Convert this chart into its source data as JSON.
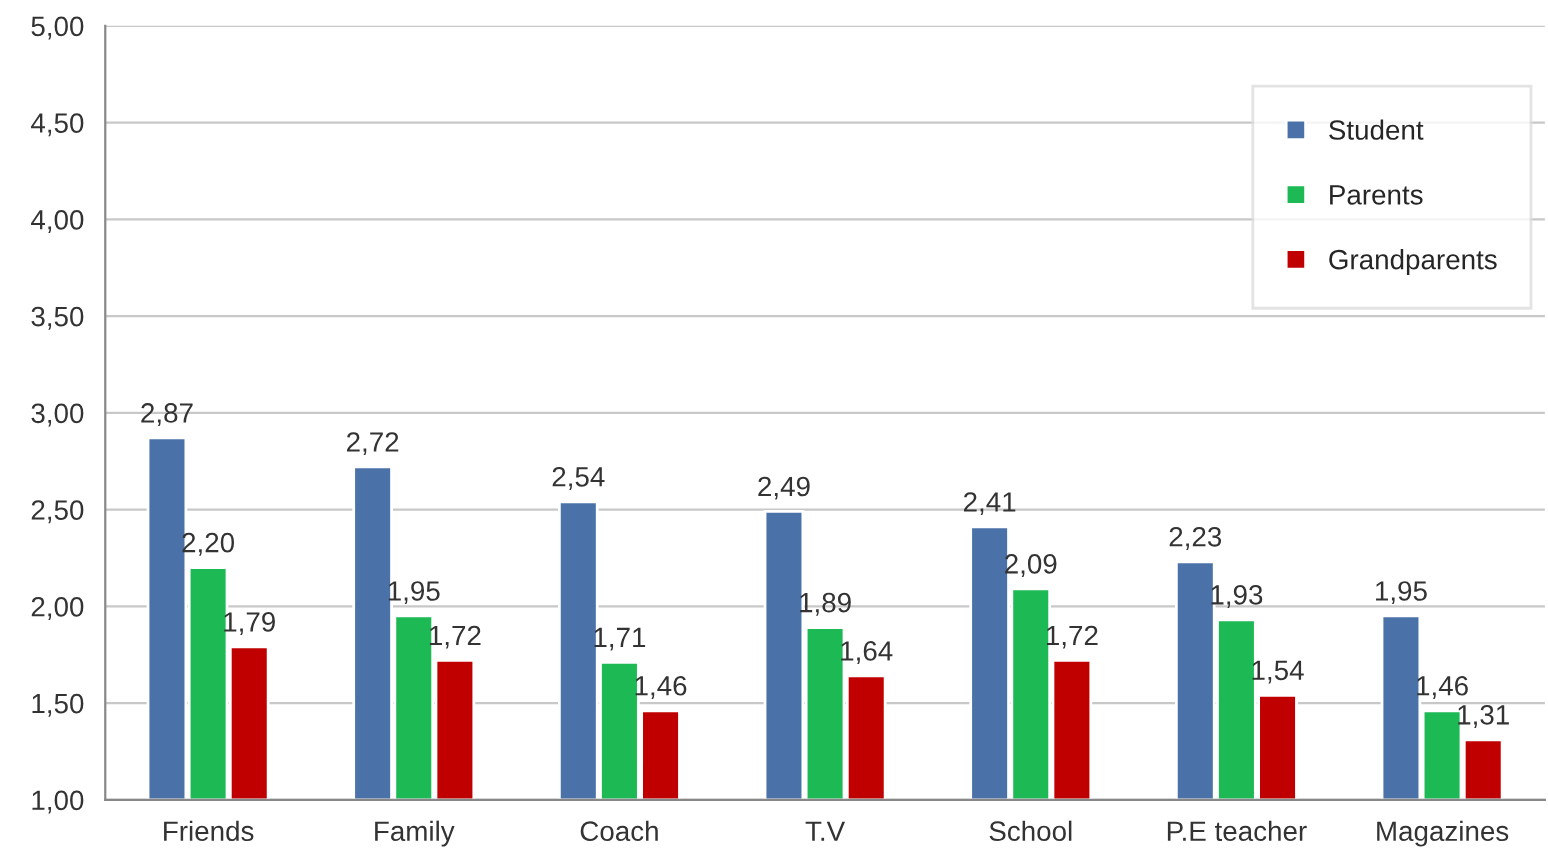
{
  "chart_data": {
    "type": "bar",
    "categories": [
      "Friends",
      "Family",
      "Coach",
      "T.V",
      "School",
      "P.E teacher",
      "Magazines"
    ],
    "series": [
      {
        "name": "Student",
        "color": "#4a72a8",
        "values": [
          2.87,
          2.72,
          2.54,
          2.49,
          2.41,
          2.23,
          1.95
        ],
        "value_labels": [
          "2,87",
          "2,72",
          "2,54",
          "2,49",
          "2,41",
          "2,23",
          "1,95"
        ]
      },
      {
        "name": "Parents",
        "color": "#1db954",
        "values": [
          2.2,
          1.95,
          1.71,
          1.89,
          2.09,
          1.93,
          1.46
        ],
        "value_labels": [
          "2,20",
          "1,95",
          "1,71",
          "1,89",
          "2,09",
          "1,93",
          "1,46"
        ]
      },
      {
        "name": "Grandparents",
        "color": "#c00000",
        "values": [
          1.79,
          1.72,
          1.46,
          1.64,
          1.72,
          1.54,
          1.31
        ],
        "value_labels": [
          "1,79",
          "1,72",
          "1,46",
          "1,64",
          "1,72",
          "1,54",
          "1,31"
        ]
      }
    ],
    "ylim": [
      1.0,
      5.0
    ],
    "yticks": [
      {
        "value": 1.0,
        "label": "1,00"
      },
      {
        "value": 1.5,
        "label": "1,50"
      },
      {
        "value": 2.0,
        "label": "2,00"
      },
      {
        "value": 2.5,
        "label": "2,50"
      },
      {
        "value": 3.0,
        "label": "3,00"
      },
      {
        "value": 3.5,
        "label": "3,50"
      },
      {
        "value": 4.0,
        "label": "4,00"
      },
      {
        "value": 4.5,
        "label": "4,50"
      },
      {
        "value": 5.0,
        "label": "5,00"
      }
    ],
    "grid": "y",
    "legend": "top right"
  }
}
